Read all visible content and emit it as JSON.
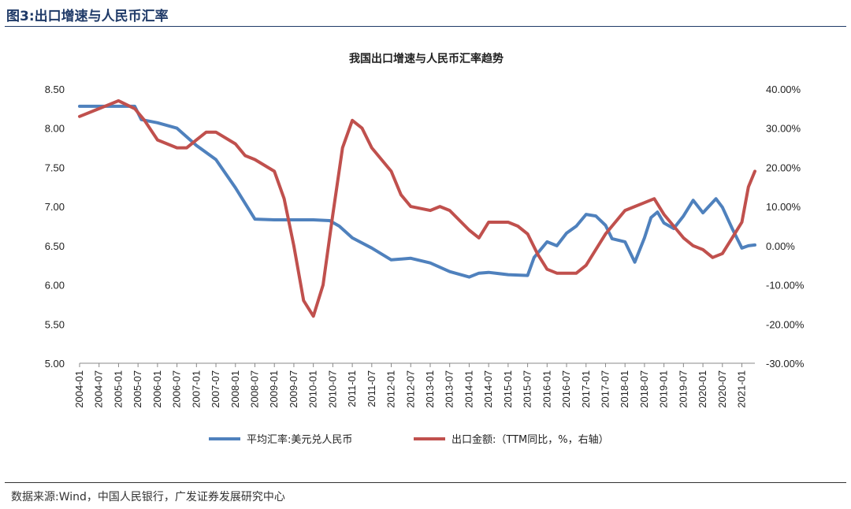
{
  "figure": {
    "label": "图3:出口增速与人民币汇率",
    "source": "数据来源:Wind，中国人民银行，广发证券发展研究中心"
  },
  "chart_data": {
    "type": "line",
    "title": "我国出口增速与人民币汇率趋势",
    "x_tick_labels": [
      "2004-01",
      "2004-07",
      "2005-01",
      "2005-07",
      "2006-01",
      "2006-07",
      "2007-01",
      "2007-07",
      "2008-01",
      "2008-07",
      "2009-01",
      "2009-07",
      "2010-01",
      "2010-07",
      "2011-01",
      "2011-07",
      "2012-01",
      "2012-07",
      "2013-01",
      "2013-07",
      "2014-01",
      "2014-07",
      "2015-01",
      "2015-07",
      "2016-01",
      "2016-07",
      "2017-01",
      "2017-07",
      "2018-01",
      "2018-07",
      "2019-01",
      "2019-07",
      "2020-01",
      "2020-07",
      "2021-01"
    ],
    "x_range": [
      "2004-01",
      "2021-05"
    ],
    "y_left": {
      "range": [
        5.0,
        8.5
      ],
      "ticks": [
        "8.50",
        "8.00",
        "7.50",
        "7.00",
        "6.50",
        "6.00",
        "5.50",
        "5.00"
      ]
    },
    "y_right": {
      "range": [
        -30,
        40
      ],
      "ticks": [
        "40.00%",
        "30.00%",
        "20.00%",
        "10.00%",
        "0.00%",
        "-10.00%",
        "-20.00%",
        "-30.00%"
      ]
    },
    "legend_position": "bottom",
    "grid": false,
    "series": [
      {
        "name": "平均汇率:美元兑人民币",
        "axis": "left",
        "color": "#4f81bd",
        "points": [
          [
            "2004-01",
            8.28
          ],
          [
            "2004-07",
            8.28
          ],
          [
            "2005-01",
            8.28
          ],
          [
            "2005-06",
            8.28
          ],
          [
            "2005-08",
            8.11
          ],
          [
            "2006-01",
            8.07
          ],
          [
            "2006-07",
            8.0
          ],
          [
            "2007-01",
            7.78
          ],
          [
            "2007-07",
            7.6
          ],
          [
            "2008-01",
            7.24
          ],
          [
            "2008-07",
            6.84
          ],
          [
            "2009-01",
            6.83
          ],
          [
            "2009-07",
            6.83
          ],
          [
            "2010-01",
            6.83
          ],
          [
            "2010-06",
            6.82
          ],
          [
            "2010-09",
            6.75
          ],
          [
            "2011-01",
            6.6
          ],
          [
            "2011-07",
            6.47
          ],
          [
            "2012-01",
            6.32
          ],
          [
            "2012-07",
            6.34
          ],
          [
            "2013-01",
            6.28
          ],
          [
            "2013-07",
            6.17
          ],
          [
            "2014-01",
            6.1
          ],
          [
            "2014-04",
            6.15
          ],
          [
            "2014-07",
            6.16
          ],
          [
            "2015-01",
            6.13
          ],
          [
            "2015-07",
            6.12
          ],
          [
            "2015-09",
            6.35
          ],
          [
            "2016-01",
            6.55
          ],
          [
            "2016-04",
            6.5
          ],
          [
            "2016-07",
            6.66
          ],
          [
            "2016-10",
            6.75
          ],
          [
            "2017-01",
            6.9
          ],
          [
            "2017-04",
            6.88
          ],
          [
            "2017-07",
            6.76
          ],
          [
            "2017-09",
            6.59
          ],
          [
            "2018-01",
            6.55
          ],
          [
            "2018-04",
            6.29
          ],
          [
            "2018-07",
            6.6
          ],
          [
            "2018-09",
            6.86
          ],
          [
            "2018-11",
            6.93
          ],
          [
            "2019-01",
            6.79
          ],
          [
            "2019-04",
            6.72
          ],
          [
            "2019-07",
            6.88
          ],
          [
            "2019-10",
            7.08
          ],
          [
            "2020-01",
            6.92
          ],
          [
            "2020-05",
            7.1
          ],
          [
            "2020-07",
            6.99
          ],
          [
            "2020-10",
            6.72
          ],
          [
            "2021-01",
            6.47
          ],
          [
            "2021-03",
            6.5
          ],
          [
            "2021-05",
            6.51
          ]
        ]
      },
      {
        "name": "出口金额:（TTM同比，%，右轴）",
        "axis": "right",
        "color": "#c0504d",
        "points": [
          [
            "2004-01",
            33
          ],
          [
            "2004-07",
            35
          ],
          [
            "2005-01",
            37
          ],
          [
            "2005-06",
            35
          ],
          [
            "2005-09",
            32
          ],
          [
            "2006-01",
            27
          ],
          [
            "2006-07",
            25
          ],
          [
            "2006-10",
            25
          ],
          [
            "2007-01",
            27
          ],
          [
            "2007-04",
            29
          ],
          [
            "2007-07",
            29
          ],
          [
            "2008-01",
            26
          ],
          [
            "2008-04",
            23
          ],
          [
            "2008-07",
            22
          ],
          [
            "2009-01",
            19
          ],
          [
            "2009-04",
            12
          ],
          [
            "2009-07",
            0
          ],
          [
            "2009-10",
            -14
          ],
          [
            "2010-01",
            -18
          ],
          [
            "2010-04",
            -10
          ],
          [
            "2010-07",
            8
          ],
          [
            "2010-10",
            25
          ],
          [
            "2011-01",
            32
          ],
          [
            "2011-04",
            30
          ],
          [
            "2011-07",
            25
          ],
          [
            "2012-01",
            19
          ],
          [
            "2012-04",
            13
          ],
          [
            "2012-07",
            10
          ],
          [
            "2013-01",
            9
          ],
          [
            "2013-04",
            10
          ],
          [
            "2013-07",
            9
          ],
          [
            "2014-01",
            4
          ],
          [
            "2014-04",
            2
          ],
          [
            "2014-07",
            6
          ],
          [
            "2014-10",
            6
          ],
          [
            "2015-01",
            6
          ],
          [
            "2015-04",
            5
          ],
          [
            "2015-07",
            3
          ],
          [
            "2015-10",
            -2
          ],
          [
            "2016-01",
            -6
          ],
          [
            "2016-04",
            -7
          ],
          [
            "2016-07",
            -7
          ],
          [
            "2016-10",
            -7
          ],
          [
            "2017-01",
            -5
          ],
          [
            "2017-07",
            3
          ],
          [
            "2018-01",
            9
          ],
          [
            "2018-04",
            10
          ],
          [
            "2018-07",
            11
          ],
          [
            "2018-10",
            12
          ],
          [
            "2019-01",
            8
          ],
          [
            "2019-04",
            5
          ],
          [
            "2019-07",
            2
          ],
          [
            "2019-10",
            0
          ],
          [
            "2020-01",
            -1
          ],
          [
            "2020-04",
            -3
          ],
          [
            "2020-07",
            -2
          ],
          [
            "2020-10",
            2
          ],
          [
            "2021-01",
            6
          ],
          [
            "2021-03",
            15
          ],
          [
            "2021-05",
            19
          ]
        ]
      }
    ]
  }
}
